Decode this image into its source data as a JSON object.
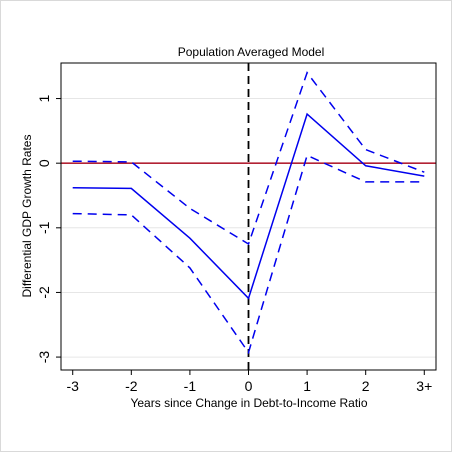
{
  "chart_data": {
    "type": "line",
    "title": "Population Averaged Model",
    "xlabel": "Years since Change in Debt-to-Income Ratio",
    "ylabel": "Differential GDP Growth Rates",
    "x": [
      -3,
      -2,
      -1,
      0,
      1,
      2,
      3
    ],
    "x_tick_labels": [
      "-3",
      "-2",
      "-1",
      "0",
      "1",
      "2",
      "3+"
    ],
    "y_ticks": [
      -3,
      -2,
      -1,
      0,
      1
    ],
    "y_tick_labels": [
      "-3",
      "-2",
      "-1",
      "0",
      "1"
    ],
    "xlim": [
      -3.2,
      3.2
    ],
    "ylim": [
      -3.2,
      1.55
    ],
    "grid": true,
    "series": [
      {
        "values": [
          -0.38,
          -0.39,
          -1.16,
          -2.09,
          0.76,
          -0.04,
          -0.2
        ],
        "style": "solid"
      },
      {
        "values": [
          0.03,
          0.02,
          -0.7,
          -1.25,
          1.4,
          0.21,
          -0.14
        ],
        "style": "dashed"
      },
      {
        "values": [
          -0.78,
          -0.8,
          -1.62,
          -2.93,
          0.12,
          -0.29,
          -0.29
        ],
        "style": "dashed"
      }
    ],
    "reference_lines": [
      {
        "axis": "y",
        "value": 0,
        "color": "#b22234",
        "style": "solid"
      },
      {
        "axis": "x",
        "value": 0,
        "color": "#000000",
        "style": "dashed"
      }
    ],
    "colors": {
      "series": "#0000ee",
      "grid": "#e6e6e6"
    }
  }
}
